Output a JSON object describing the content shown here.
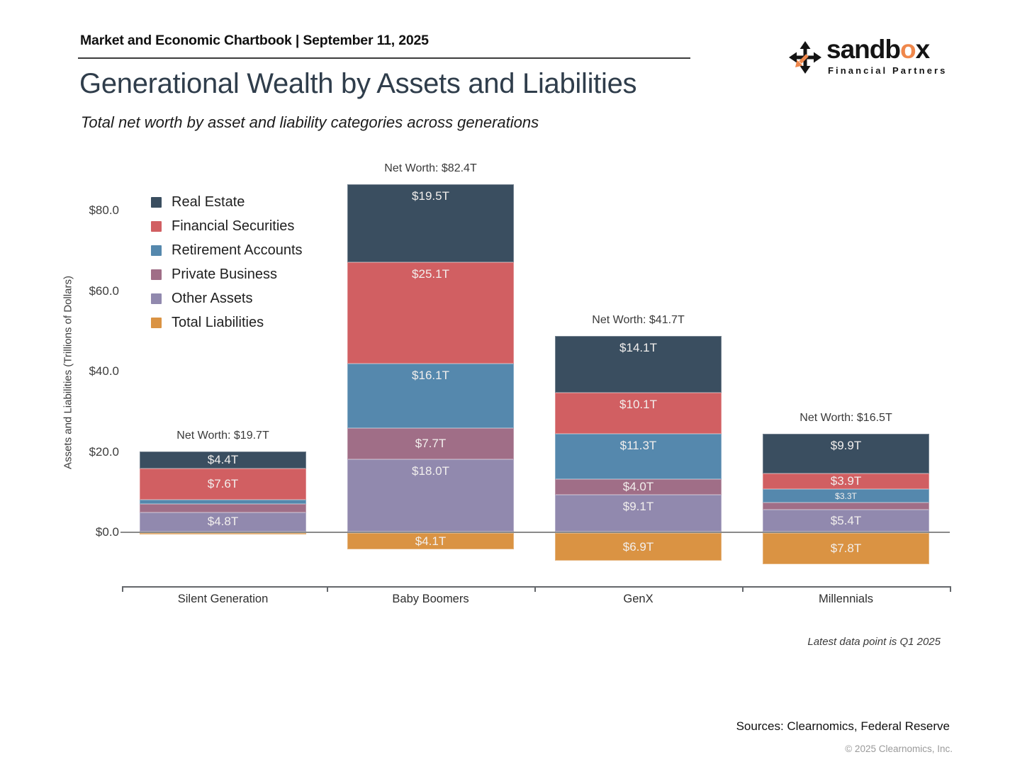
{
  "header": {
    "title": "Market and Economic Chartbook | September 11, 2025"
  },
  "logo": {
    "word_pre": "sandb",
    "word_accent": "o",
    "word_post": "x",
    "tagline": "Financial Partners",
    "accent_color": "#ef874b",
    "icon": "move-arrows-icon"
  },
  "title": "Generational Wealth by Assets and Liabilities",
  "subtitle": "Total net worth by asset and liability categories across generations",
  "chart_data": {
    "type": "bar",
    "stacked": true,
    "ylabel": "Assets and Liabilities (Trillions of Dollars)",
    "ylim": [
      -12,
      90
    ],
    "grid": false,
    "legend_position": "upper-left-inside",
    "yticks": [
      {
        "v": 0,
        "label": "$0.0"
      },
      {
        "v": 20,
        "label": "$20.0"
      },
      {
        "v": 40,
        "label": "$40.0"
      },
      {
        "v": 60,
        "label": "$60.0"
      },
      {
        "v": 80,
        "label": "$80.0"
      }
    ],
    "categories": [
      "Silent Generation",
      "Baby Boomers",
      "GenX",
      "Millennials"
    ],
    "net_worth_labels": [
      "Net Worth: $19.7T",
      "Net Worth: $82.4T",
      "Net Worth: $41.7T",
      "Net Worth: $16.5T"
    ],
    "net_worth_values": [
      19.7,
      82.4,
      41.7,
      16.5
    ],
    "series": [
      {
        "name": "Real Estate",
        "color": "#3a4e60",
        "direction": "asset",
        "values": [
          4.4,
          19.5,
          14.1,
          9.9
        ],
        "labels": [
          "$4.4T",
          "$19.5T",
          "$14.1T",
          "$9.9T"
        ]
      },
      {
        "name": "Financial Securities",
        "color": "#d15f62",
        "direction": "asset",
        "values": [
          7.6,
          25.1,
          10.1,
          3.9
        ],
        "labels": [
          "$7.6T",
          "$25.1T",
          "$10.1T",
          "$3.9T"
        ]
      },
      {
        "name": "Retirement Accounts",
        "color": "#5588ad",
        "direction": "asset",
        "values": [
          1.2,
          16.1,
          11.3,
          3.3
        ],
        "labels": [
          "",
          "$16.1T",
          "$11.3T",
          "$3.3T"
        ]
      },
      {
        "name": "Private Business",
        "color": "#a06e87",
        "direction": "asset",
        "values": [
          2.0,
          7.7,
          4.0,
          1.8
        ],
        "labels": [
          "",
          "$7.7T",
          "$4.0T",
          ""
        ]
      },
      {
        "name": "Other Assets",
        "color": "#9189ae",
        "direction": "asset",
        "values": [
          4.8,
          18.0,
          9.1,
          5.4
        ],
        "labels": [
          "$4.8T",
          "$18.0T",
          "$9.1T",
          "$5.4T"
        ]
      },
      {
        "name": "Total Liabilities",
        "color": "#da9343",
        "direction": "liability",
        "values": [
          0.3,
          4.1,
          6.9,
          7.8
        ],
        "labels": [
          "",
          "$4.1T",
          "$6.9T",
          "$7.8T"
        ]
      }
    ],
    "footnote": "Latest data point is Q1 2025"
  },
  "footer": {
    "sources": "Sources: Clearnomics, Federal Reserve",
    "copyright": "© 2025 Clearnomics, Inc."
  }
}
